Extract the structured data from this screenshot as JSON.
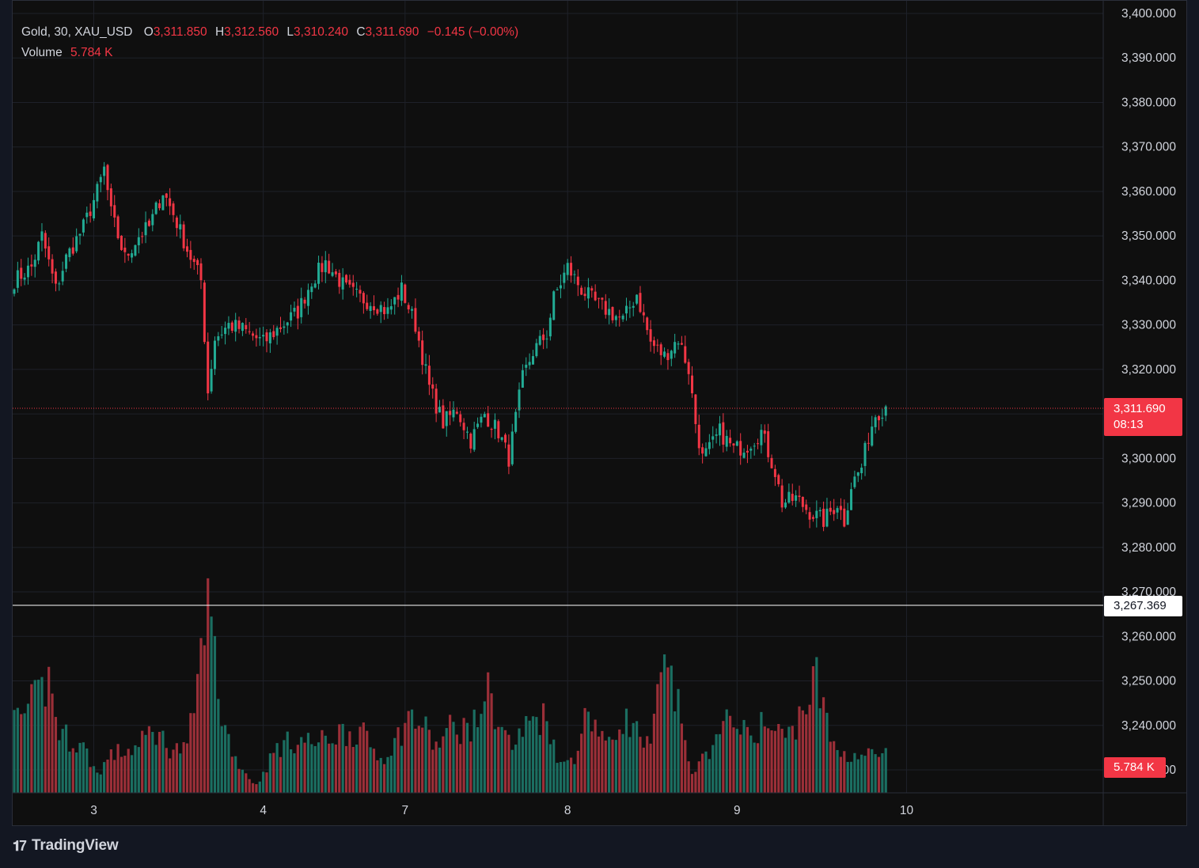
{
  "legend": {
    "symbol": "Gold, 30, XAU_USD",
    "open_label": "O",
    "open": "3,311.850",
    "high_label": "H",
    "high": "3,312.560",
    "low_label": "L",
    "low": "3,310.240",
    "close_label": "C",
    "close": "3,311.690",
    "change": "−0.145 (−0.00%)",
    "volume_label": "Volume",
    "volume": "5.784 K"
  },
  "last_price_tag": {
    "price": "3,311.690",
    "countdown": "08:13"
  },
  "crosshair_tag": {
    "price": "3,267.369"
  },
  "volume_tag": {
    "value": "5.784 K"
  },
  "brand": {
    "logo_icon": "tradingview-logo-icon",
    "name": "TradingView"
  },
  "colors": {
    "up": "#22ab94",
    "down": "#f23645",
    "up_volume": "#1b6e61",
    "down_volume": "#9b2f38",
    "background": "#0f0f0f"
  },
  "chart_data": {
    "type": "candlestick",
    "price_axis_ticks": [
      "3,400.000",
      "3,390.000",
      "3,380.000",
      "3,370.000",
      "3,360.000",
      "3,350.000",
      "3,340.000",
      "3,330.000",
      "3,320.000",
      "3,310.000",
      "3,300.000",
      "3,290.000",
      "3,280.000",
      "3,270.000",
      "3,260.000",
      "3,250.000",
      "3,240.000",
      "3,230.000"
    ],
    "price_axis_values": [
      3400,
      3390,
      3380,
      3370,
      3360,
      3350,
      3340,
      3330,
      3320,
      3310,
      3300,
      3290,
      3280,
      3270,
      3260,
      3250,
      3240,
      3230
    ],
    "ylim": [
      3227,
      3402
    ],
    "time_axis_ticks": [
      {
        "label": "3",
        "index": 23
      },
      {
        "label": "4",
        "index": 72
      },
      {
        "label": "7",
        "index": 113
      },
      {
        "label": "8",
        "index": 160
      },
      {
        "label": "9",
        "index": 209
      },
      {
        "label": "10",
        "index": 258
      }
    ],
    "last_price": 3311.69,
    "crosshair_price": 3267.369,
    "bar_count": 320,
    "price_anchors": [
      [
        0,
        3340
      ],
      [
        5,
        3343
      ],
      [
        8,
        3350
      ],
      [
        12,
        3338
      ],
      [
        15,
        3345
      ],
      [
        20,
        3352
      ],
      [
        24,
        3360
      ],
      [
        26,
        3365
      ],
      [
        28,
        3355
      ],
      [
        32,
        3345
      ],
      [
        36,
        3350
      ],
      [
        39,
        3352
      ],
      [
        43,
        3360
      ],
      [
        46,
        3355
      ],
      [
        50,
        3347
      ],
      [
        54,
        3340
      ],
      [
        56,
        3315
      ],
      [
        58,
        3327
      ],
      [
        62,
        3330
      ],
      [
        66,
        3329
      ],
      [
        72,
        3326
      ],
      [
        76,
        3329
      ],
      [
        82,
        3333
      ],
      [
        86,
        3340
      ],
      [
        90,
        3344
      ],
      [
        96,
        3338
      ],
      [
        100,
        3336
      ],
      [
        104,
        3335
      ],
      [
        108,
        3333
      ],
      [
        112,
        3338
      ],
      [
        116,
        3330
      ],
      [
        120,
        3316
      ],
      [
        124,
        3308
      ],
      [
        128,
        3311
      ],
      [
        132,
        3304
      ],
      [
        136,
        3310
      ],
      [
        140,
        3306
      ],
      [
        143,
        3300
      ],
      [
        147,
        3318
      ],
      [
        150,
        3324
      ],
      [
        154,
        3328
      ],
      [
        156,
        3336
      ],
      [
        160,
        3343
      ],
      [
        164,
        3338
      ],
      [
        168,
        3335
      ],
      [
        172,
        3333
      ],
      [
        176,
        3331
      ],
      [
        180,
        3337
      ],
      [
        184,
        3326
      ],
      [
        188,
        3323
      ],
      [
        192,
        3327
      ],
      [
        195,
        3320
      ],
      [
        197,
        3308
      ],
      [
        199,
        3300
      ],
      [
        201,
        3302
      ],
      [
        204,
        3306
      ],
      [
        208,
        3302
      ],
      [
        212,
        3303
      ],
      [
        216,
        3306
      ],
      [
        220,
        3297
      ],
      [
        222,
        3290
      ],
      [
        226,
        3291
      ],
      [
        230,
        3288
      ],
      [
        234,
        3286
      ],
      [
        238,
        3290
      ],
      [
        240,
        3286
      ],
      [
        242,
        3294
      ],
      [
        245,
        3298
      ],
      [
        247,
        3305
      ],
      [
        249,
        3310
      ],
      [
        252,
        3311.69
      ]
    ],
    "volume_anchors": [
      [
        0,
        1.8
      ],
      [
        7,
        2.5
      ],
      [
        10,
        3.0
      ],
      [
        13,
        1.6
      ],
      [
        20,
        1.2
      ],
      [
        24,
        0.5
      ],
      [
        28,
        1.0
      ],
      [
        36,
        1.2
      ],
      [
        40,
        1.7
      ],
      [
        45,
        1.2
      ],
      [
        50,
        1.1
      ],
      [
        54,
        3.5
      ],
      [
        55,
        5.1
      ],
      [
        57,
        4.5
      ],
      [
        60,
        2.0
      ],
      [
        64,
        0.9
      ],
      [
        68,
        0.4
      ],
      [
        70,
        0.2
      ],
      [
        76,
        1.2
      ],
      [
        82,
        1.4
      ],
      [
        88,
        1.3
      ],
      [
        94,
        1.6
      ],
      [
        100,
        1.6
      ],
      [
        106,
        0.9
      ],
      [
        110,
        1.3
      ],
      [
        114,
        2.0
      ],
      [
        118,
        1.8
      ],
      [
        122,
        1.2
      ],
      [
        126,
        1.7
      ],
      [
        130,
        1.7
      ],
      [
        134,
        1.8
      ],
      [
        136,
        2.8
      ],
      [
        138,
        2.4
      ],
      [
        140,
        1.9
      ],
      [
        144,
        1.2
      ],
      [
        150,
        2.0
      ],
      [
        154,
        2.0
      ],
      [
        158,
        0.7
      ],
      [
        162,
        1.0
      ],
      [
        166,
        2.2
      ],
      [
        172,
        1.2
      ],
      [
        176,
        2.0
      ],
      [
        180,
        1.6
      ],
      [
        184,
        1.1
      ],
      [
        186,
        2.6
      ],
      [
        188,
        3.1
      ],
      [
        190,
        2.9
      ],
      [
        192,
        2.2
      ],
      [
        194,
        1.6
      ],
      [
        196,
        0.4
      ],
      [
        200,
        1.1
      ],
      [
        204,
        1.4
      ],
      [
        208,
        2.2
      ],
      [
        212,
        1.4
      ],
      [
        216,
        1.8
      ],
      [
        220,
        1.6
      ],
      [
        224,
        1.5
      ],
      [
        230,
        2.6
      ],
      [
        232,
        3.0
      ],
      [
        234,
        2.2
      ],
      [
        236,
        1.4
      ],
      [
        238,
        1.2
      ],
      [
        240,
        1.0
      ]
    ]
  }
}
